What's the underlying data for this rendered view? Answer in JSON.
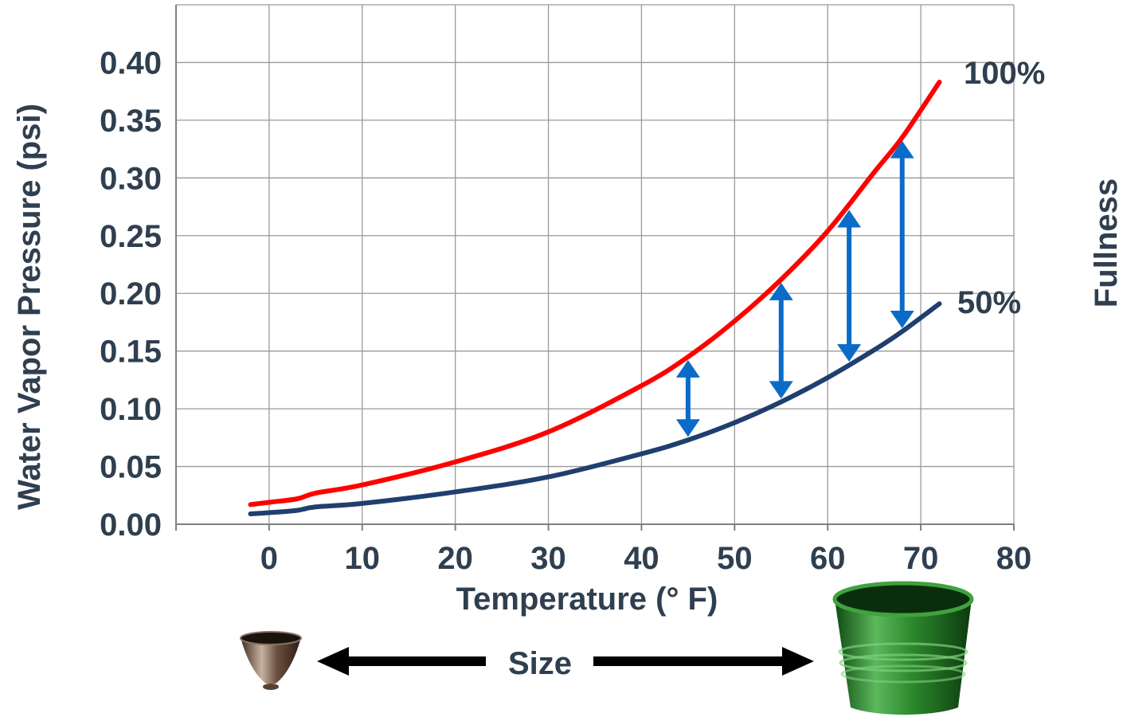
{
  "chart_data": {
    "type": "line",
    "xlabel": "Temperature (°  F)",
    "ylabel": "Water Vapor Pressure (psi)",
    "right_label": "Fullness",
    "size_label": "Size",
    "xlim": [
      -10,
      80
    ],
    "ylim": [
      0,
      0.45
    ],
    "x_ticks": [
      "0",
      "10",
      "20",
      "30",
      "40",
      "50",
      "60",
      "70",
      "80"
    ],
    "y_ticks": [
      "0.00",
      "0.05",
      "0.10",
      "0.15",
      "0.20",
      "0.25",
      "0.30",
      "0.35",
      "0.40"
    ],
    "grid": true,
    "series": [
      {
        "name": "100%",
        "color": "#ff0000",
        "x": [
          -2,
          0,
          3,
          5,
          10,
          20,
          30,
          40,
          45,
          50,
          55,
          60,
          65,
          68,
          72
        ],
        "y": [
          0.017,
          0.019,
          0.022,
          0.027,
          0.034,
          0.054,
          0.08,
          0.12,
          0.145,
          0.176,
          0.212,
          0.254,
          0.305,
          0.335,
          0.383
        ]
      },
      {
        "name": "50%",
        "color": "#1f3f6f",
        "x": [
          -2,
          0,
          3,
          5,
          10,
          20,
          30,
          40,
          45,
          50,
          55,
          60,
          65,
          68,
          72
        ],
        "y": [
          0.009,
          0.01,
          0.012,
          0.015,
          0.018,
          0.028,
          0.041,
          0.061,
          0.073,
          0.088,
          0.106,
          0.127,
          0.151,
          0.167,
          0.191
        ]
      }
    ],
    "arrows": [
      {
        "x": 45,
        "y_from": 0.073,
        "y_to": 0.145
      },
      {
        "x": 55,
        "y_from": 0.106,
        "y_to": 0.212
      },
      {
        "x": 62.3,
        "y_from": 0.138,
        "y_to": 0.275
      },
      {
        "x": 68,
        "y_from": 0.167,
        "y_to": 0.335
      }
    ],
    "arrow_color": "#0a6cc8"
  }
}
